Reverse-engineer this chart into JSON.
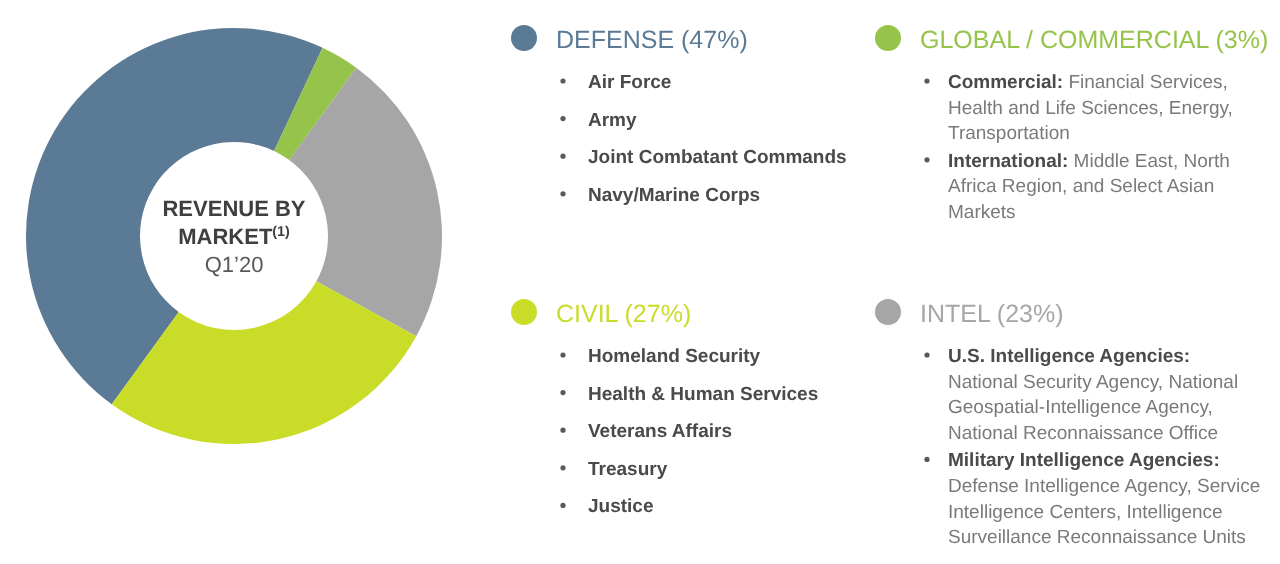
{
  "chart_data": {
    "type": "donut",
    "title": "REVENUE BY MARKET$^{(1)}$",
    "subtitle": "Q1’20",
    "categories": [
      "DEFENSE (47%)",
      "GLOBAL / COMMERCIAL (3%)",
      "INTEL (23%)",
      "CIVIL (27%)"
    ],
    "values": [
      47,
      3,
      23,
      27
    ],
    "colors": [
      "#5b7a95",
      "#96c349",
      "#a6a6a6",
      "#c9dc28"
    ],
    "legend": "right",
    "annotations": [
      {
        "text": "Air Force",
        "x": "DEFENSE (47%)"
      },
      {
        "text": "Army",
        "x": "DEFENSE (47%)"
      },
      {
        "text": "Joint Combatant Commands",
        "x": "DEFENSE (47%)"
      },
      {
        "text": "Navy/Marine Corps",
        "x": "DEFENSE (47%)"
      },
      {
        "text": "Commercial: Financial Services, Health and Life Sciences, Energy, Transportation",
        "x": "GLOBAL / COMMERCIAL (3%)"
      },
      {
        "text": "International: Middle East, North Africa Region, and Select Asian Markets",
        "x": "GLOBAL / COMMERCIAL (3%)"
      },
      {
        "text": "U.S. Intelligence Agencies: National Security Agency, National Geospatial-Intelligence Agency, National Reconnaissance Office",
        "x": "INTEL (23%)"
      },
      {
        "text": "Military Intelligence Agencies: Defense Intelligence Agency, Service Intelligence Centers, Intelligence Surveillance Reconnaissance Units",
        "x": "INTEL (23%)"
      },
      {
        "text": "Homeland Security",
        "x": "CIVIL (27%)"
      },
      {
        "text": "Health & Human Services",
        "x": "CIVIL (27%)"
      },
      {
        "text": "Veterans Affairs",
        "x": "CIVIL (27%)"
      },
      {
        "text": "Treasury",
        "x": "CIVIL (27%)"
      },
      {
        "text": "Justice",
        "x": "CIVIL (27%)"
      }
    ]
  }
}
